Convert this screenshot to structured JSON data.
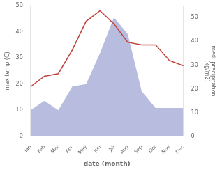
{
  "chart_data": {
    "type": "line",
    "xlabel": "date (month)",
    "ylabel": "max temp (C)",
    "y2label": "med. precipitation\n(kg/m2)",
    "categories": [
      "Jan",
      "Feb",
      "Mar",
      "Apr",
      "May",
      "Jun",
      "Jul",
      "Aug",
      "Sep",
      "Oct",
      "Nov",
      "Dec"
    ],
    "series": [
      {
        "type": "area",
        "axis": "y2",
        "color": "#b8bde0",
        "values": [
          11,
          15,
          11,
          21,
          22,
          35,
          50,
          43,
          19,
          12,
          12,
          12
        ]
      },
      {
        "type": "line",
        "color": "#c0413a",
        "values": [
          19,
          23,
          24,
          33,
          44,
          48,
          43,
          36,
          35,
          35,
          29,
          27
        ]
      }
    ],
    "ylim": [
      0,
      50
    ],
    "yticks": [
      0,
      10,
      20,
      30,
      40,
      50
    ],
    "y2lim": [
      0,
      55
    ],
    "y2ticks": [
      0,
      10,
      20,
      30,
      40,
      50
    ],
    "grid": false
  }
}
